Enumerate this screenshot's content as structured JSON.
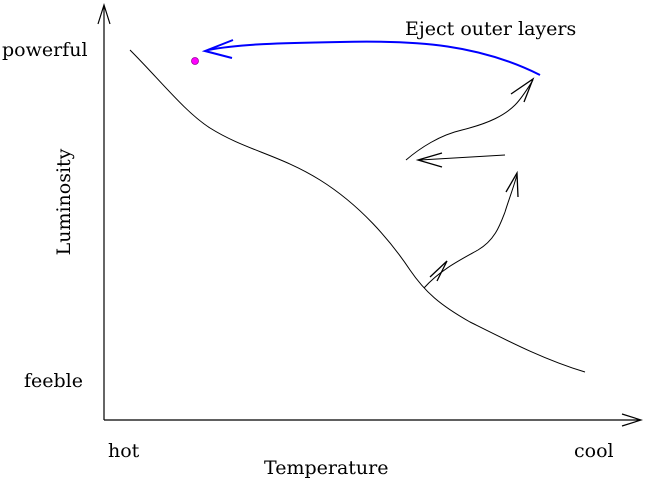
{
  "diagram": {
    "y_axis": {
      "title": "Luminosity",
      "top_label": "powerful",
      "bottom_label": "feeble"
    },
    "x_axis": {
      "title": "Temperature",
      "left_label": "hot",
      "right_label": "cool"
    },
    "annotation": "Eject outer layers",
    "colors": {
      "axes": "#000000",
      "main_sequence": "#000000",
      "evolution_track": "#000000",
      "ejection_arrow": "#0000ff",
      "remnant_dot_fill": "#ff00ff",
      "remnant_dot_stroke": "#990099"
    }
  }
}
